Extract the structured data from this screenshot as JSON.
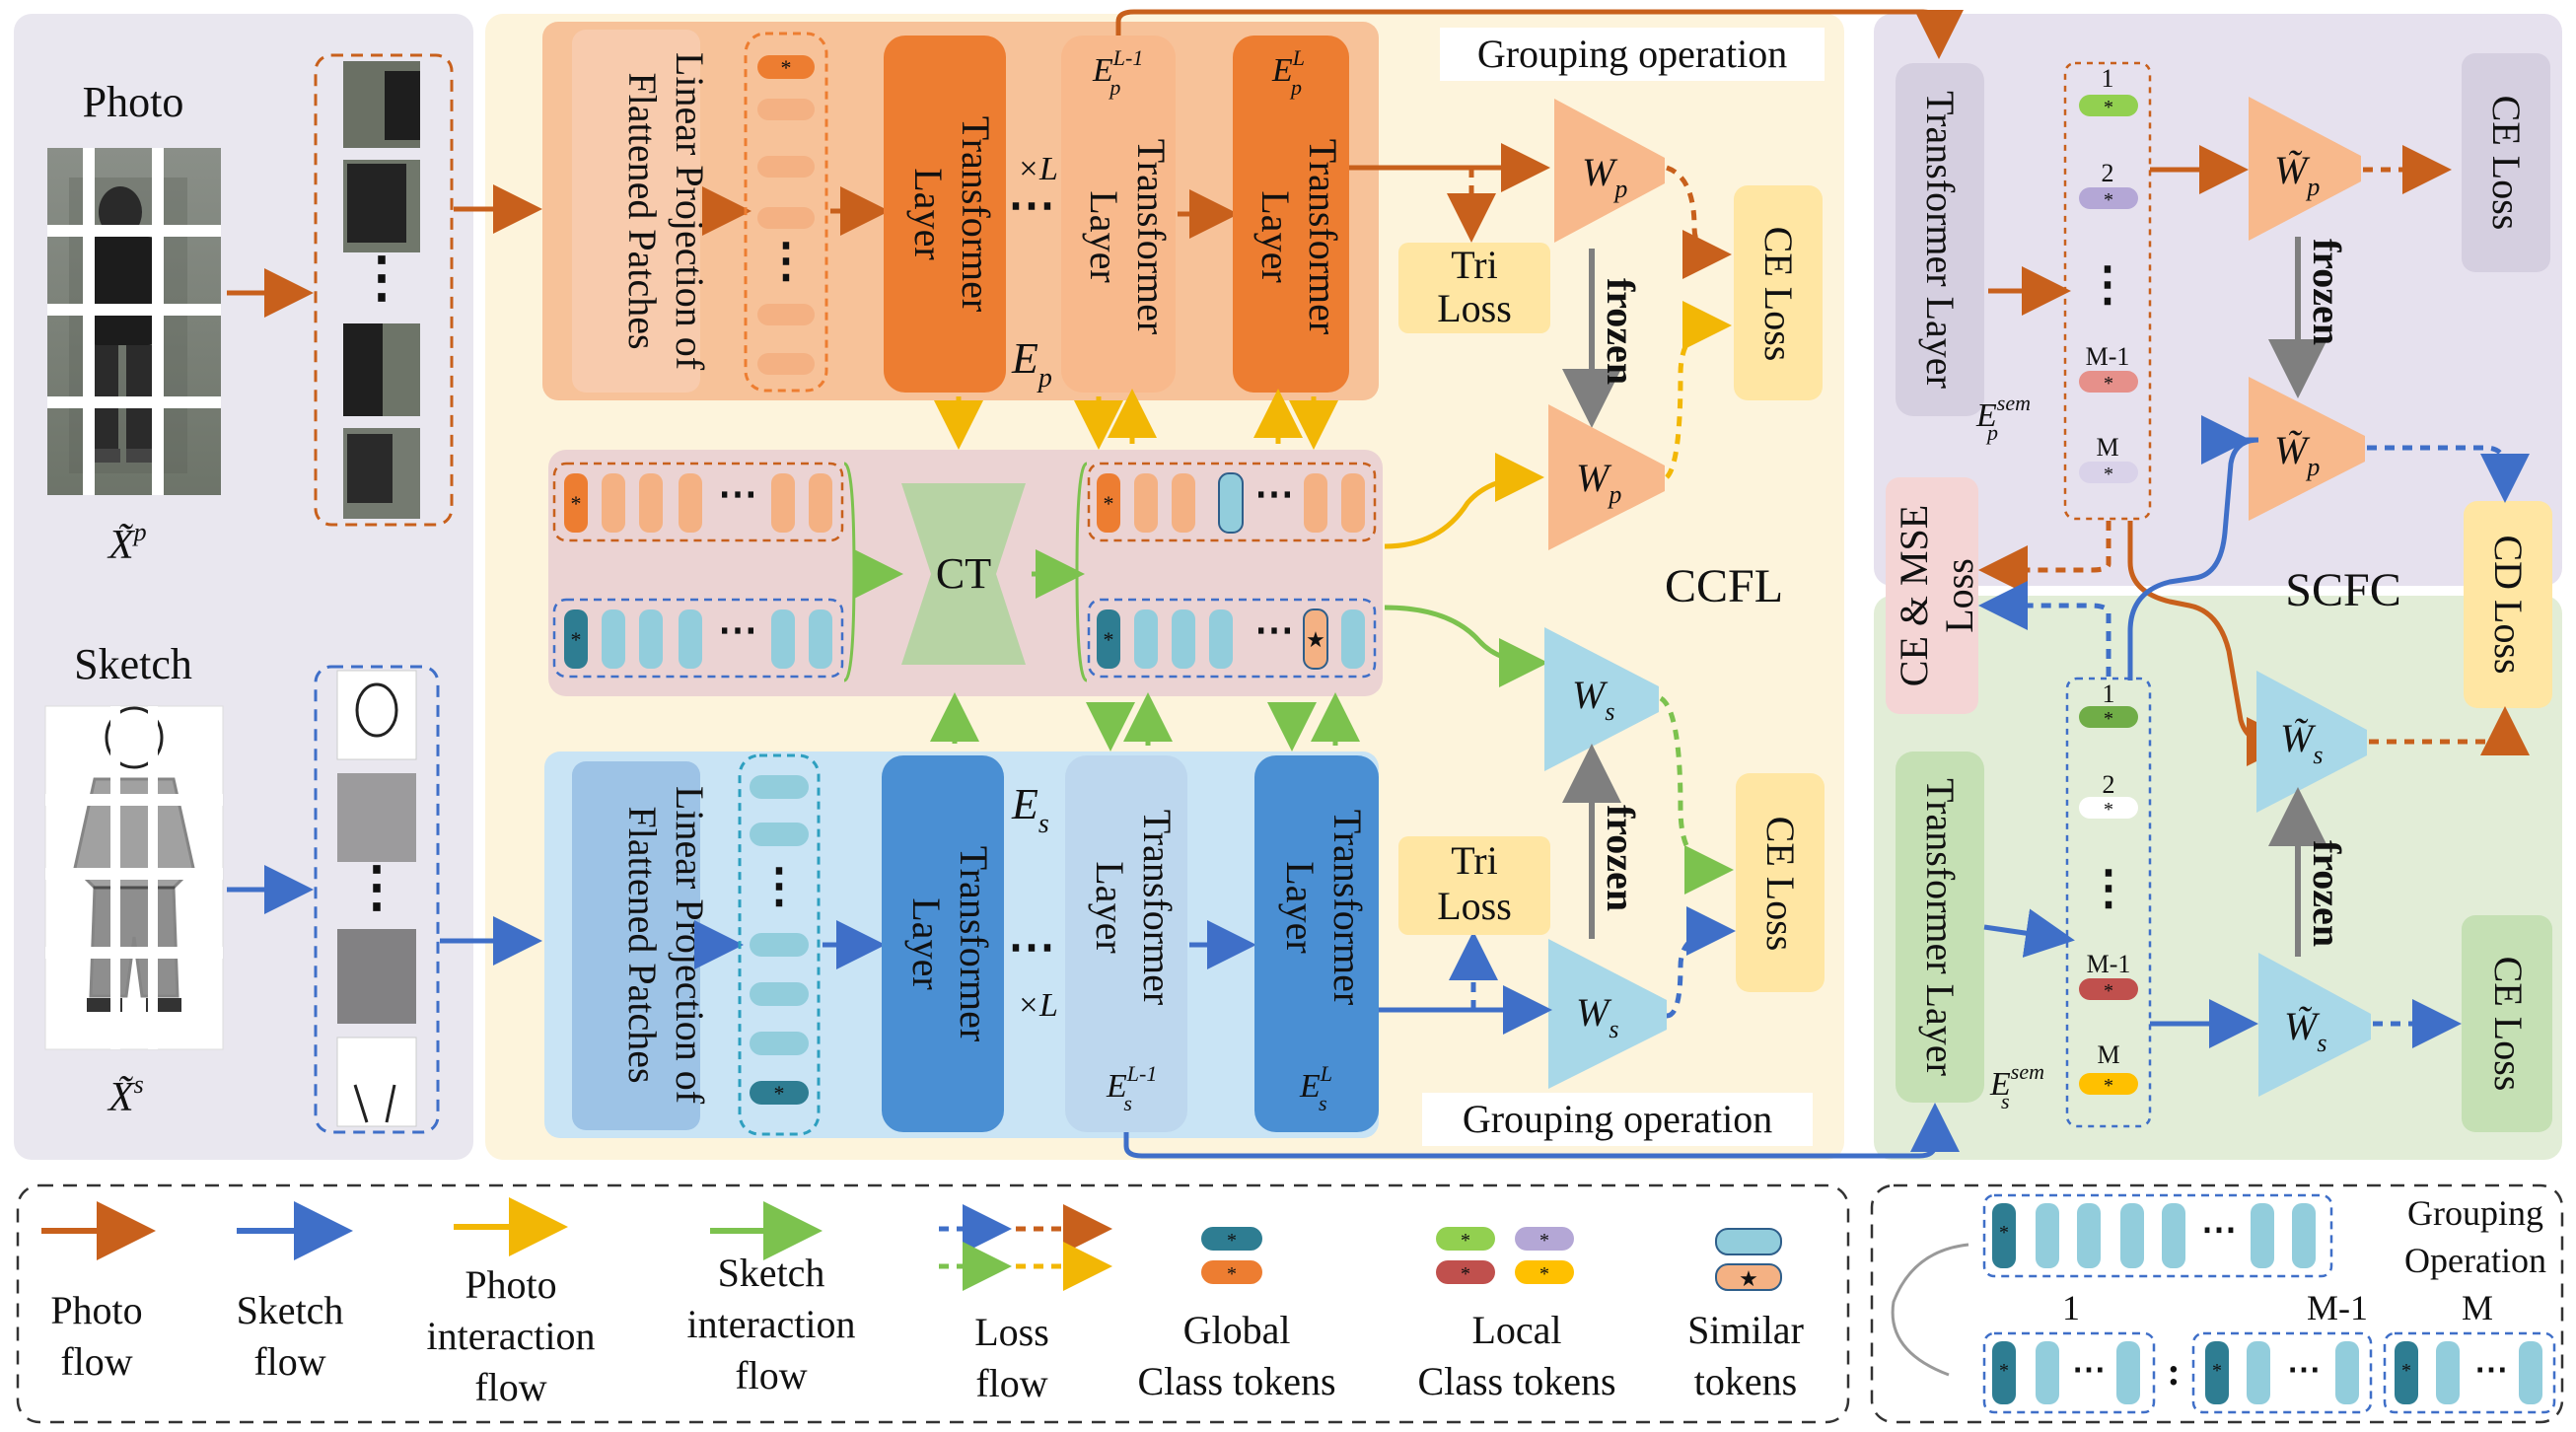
{
  "input_panel": {
    "photo_label": "Photo",
    "photo_symbol": "X̃",
    "photo_sup": "p",
    "sketch_label": "Sketch",
    "sketch_symbol": "X̃",
    "sketch_sup": "s",
    "ellipsis": "⋮"
  },
  "ccfl": {
    "label": "CCFL",
    "photo_encoder": {
      "linear_proj": [
        "Linear Projection of",
        "Flattened Patches"
      ],
      "transformer": [
        "Transformer",
        "Layer"
      ],
      "times_l": "×L",
      "ellipsis": "⋯",
      "enc_symbol": "E",
      "enc_sub": "p",
      "layer_l1": {
        "base": "E",
        "sup": "L-1",
        "sub": "p"
      },
      "layer_l": {
        "base": "E",
        "sup": "L",
        "sub": "p"
      }
    },
    "sketch_encoder": {
      "linear_proj": [
        "Linear Projection of",
        "Flattened Patches"
      ],
      "transformer": [
        "Transformer",
        "Layer"
      ],
      "times_l": "×L",
      "ellipsis": "⋯",
      "enc_symbol": "E",
      "enc_sub": "s",
      "layer_l1": {
        "base": "E",
        "sup": "L-1",
        "sub": "s"
      },
      "layer_l": {
        "base": "E",
        "sup": "L",
        "sub": "s"
      }
    },
    "ct_label": "CT",
    "grouping_top": "Grouping operation",
    "grouping_bottom": "Grouping operation",
    "tri_loss_top": [
      "Tri",
      "Loss"
    ],
    "tri_loss_bottom": [
      "Tri",
      "Loss"
    ],
    "ce_loss_top": "CE Loss",
    "ce_loss_bottom": "CE Loss",
    "frozen_top": "frozen",
    "frozen_bottom": "frozen",
    "wp": {
      "base": "W",
      "sub": "p"
    },
    "ws": {
      "base": "W",
      "sub": "s"
    }
  },
  "scfc": {
    "label": "SCFC",
    "transformer_top": "Transformer Layer",
    "transformer_bottom": "Transformer Layer",
    "sem_top": {
      "base": "E",
      "sup": "sem",
      "sub": "p"
    },
    "sem_bottom": {
      "base": "E",
      "sup": "sem",
      "sub": "s"
    },
    "token_labels": [
      "1",
      "2",
      "⋮",
      "M-1",
      "M"
    ],
    "ce_mse_loss": [
      "CE & MSE",
      "Loss"
    ],
    "cd_loss": "CD Loss",
    "ce_loss_top": "CE Loss",
    "ce_loss_bottom": "CE Loss",
    "frozen_top": "frozen",
    "frozen_bottom": "frozen",
    "wp_tilde": {
      "base": "W̃",
      "sub": "p"
    },
    "ws_tilde": {
      "base": "W̃",
      "sub": "s"
    }
  },
  "legend": {
    "photo_flow": [
      "Photo",
      "flow"
    ],
    "sketch_flow": [
      "Sketch",
      "flow"
    ],
    "photo_interaction": [
      "Photo",
      "interaction",
      "flow"
    ],
    "sketch_interaction": [
      "Sketch",
      "interaction",
      "flow"
    ],
    "loss_flow": [
      "Loss",
      "flow"
    ],
    "global_tokens": [
      "Global",
      "Class tokens"
    ],
    "local_tokens": [
      "Local",
      "Class tokens"
    ],
    "similar_tokens": [
      "Similar",
      "tokens"
    ]
  },
  "grouping_legend": {
    "title": [
      "Grouping",
      "Operation"
    ],
    "groups": [
      "1",
      "M-1",
      "M"
    ],
    "ellipsis": "⋯",
    "colon": ":"
  },
  "colors": {
    "photo_flow": "#C8601C",
    "sketch_flow": "#3F6FC8",
    "photo_interaction": "#F2B705",
    "sketch_interaction": "#7CC24E",
    "left_panel_bg": "#E9E7EF",
    "ccfl_bg": "#FDF4DC",
    "photo_enc_bg": "#F4B183",
    "sketch_enc_bg": "#C9E4F5",
    "ct_bg": "#EBD3D3",
    "scfc_top_bg": "#E6E1EE",
    "scfc_bottom_bg": "#E2EDD7",
    "transformer_photo": "#ED7D31",
    "transformer_sketch": "#4A8FD3",
    "triangle_photo": "#F8B98C",
    "triangle_sketch": "#A8D8E8",
    "ct_block": "#B7D3A4",
    "loss_box": "#FFE6A3",
    "gray_box": "#D5CFE0",
    "green_box": "#C5E0B4",
    "pink_box": "#F4D5D5"
  }
}
